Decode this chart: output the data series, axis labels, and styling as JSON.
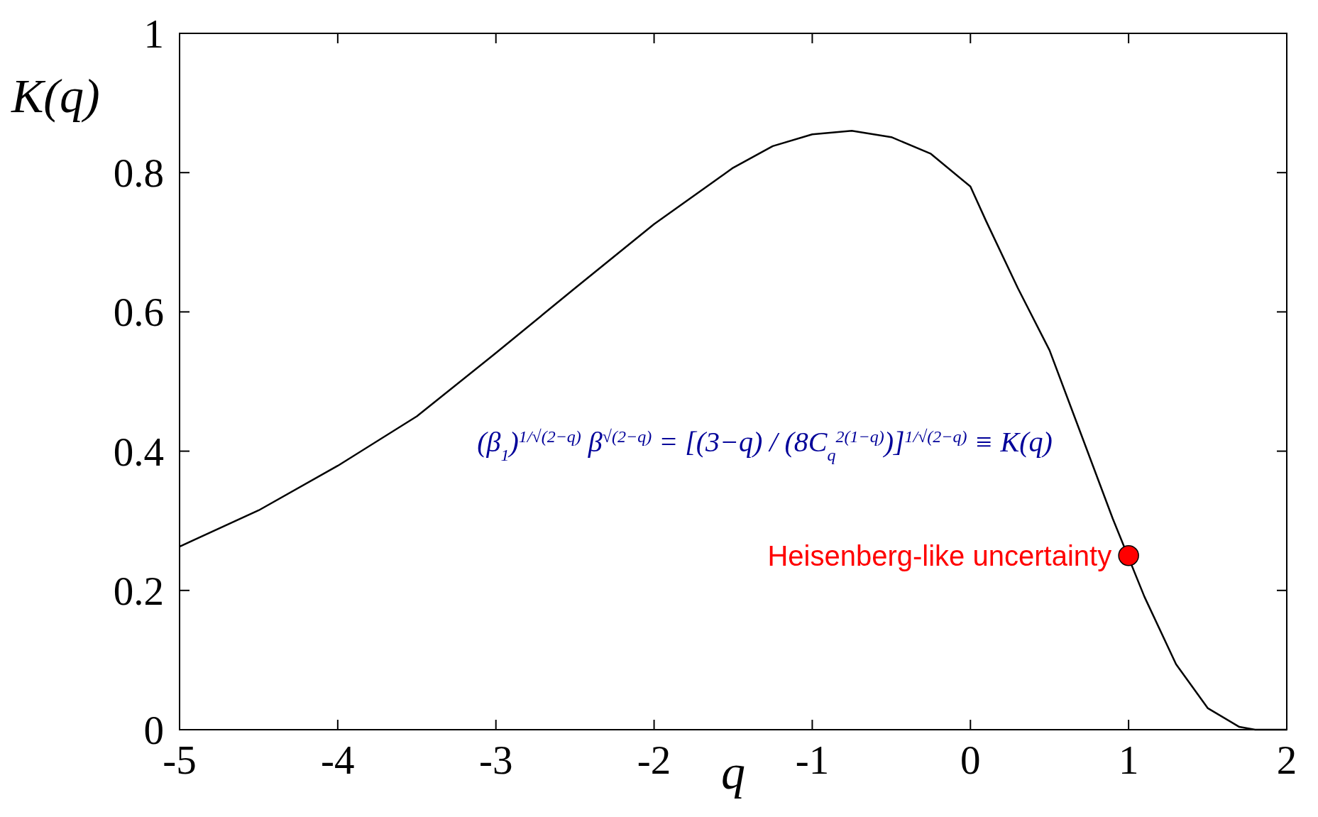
{
  "chart_data": {
    "type": "line",
    "xlabel": "q",
    "ylabel": "K(q)",
    "xlim": [
      -5,
      2
    ],
    "ylim": [
      0,
      1
    ],
    "xticks": [
      -5,
      -4,
      -3,
      -2,
      -1,
      0,
      1,
      2
    ],
    "yticks": [
      0,
      0.2,
      0.4,
      0.6,
      0.8,
      1
    ],
    "grid": false,
    "series": [
      {
        "color": "#000000",
        "marker": "none",
        "x": [
          -5,
          -4.5,
          -4,
          -3.5,
          -3,
          -2.5,
          -2,
          -1.5,
          -1.25,
          -1,
          -0.75,
          -0.5,
          -0.25,
          0,
          0.1,
          0.3,
          0.5,
          0.7,
          0.9,
          1,
          1.1,
          1.3,
          1.5,
          1.7,
          1.8,
          2
        ],
        "values": [
          0.263,
          0.315,
          0.379,
          0.45,
          0.541,
          0.634,
          0.726,
          0.807,
          0.838,
          0.855,
          0.86,
          0.851,
          0.827,
          0.78,
          0.73,
          0.634,
          0.545,
          0.424,
          0.303,
          null,
          0.191,
          0.094,
          0.031,
          0.004,
          0,
          0
        ]
      },
      {
        "type": "scatter",
        "color": "#ff0000",
        "marker": "circle",
        "x": [
          1
        ],
        "values": [
          0.25
        ]
      }
    ],
    "annotations": [
      {
        "text": "Heisenberg-like uncertainty",
        "x": 1,
        "y": 0.25
      },
      "(β$_{1}$)$^{1/√(2−q)}$ β$^{√(2−q)}$ = [(3−q) / (8C$_{q}$$^{2(1−q)}$)]$^{1/√(2−q)}$ ≡ K(q)"
    ]
  }
}
